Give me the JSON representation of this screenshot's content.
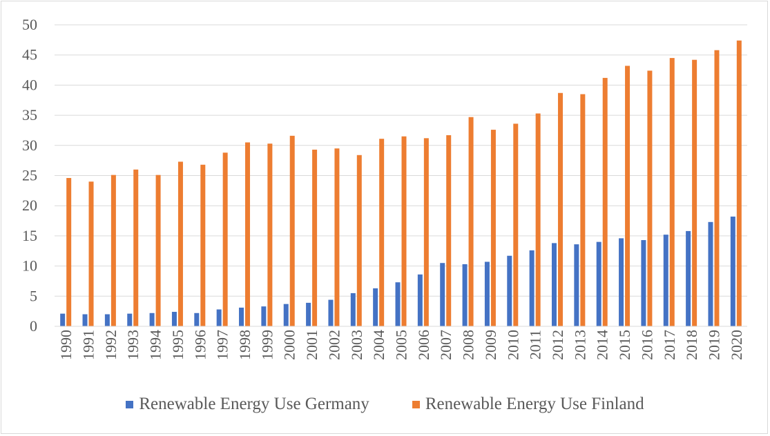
{
  "chart_data": {
    "type": "bar",
    "categories": [
      "1990",
      "1991",
      "1992",
      "1993",
      "1994",
      "1995",
      "1996",
      "1997",
      "1998",
      "1999",
      "2000",
      "2001",
      "2002",
      "2003",
      "2004",
      "2005",
      "2006",
      "2007",
      "2008",
      "2009",
      "2010",
      "2011",
      "2012",
      "2013",
      "2014",
      "2015",
      "2016",
      "2017",
      "2018",
      "2019",
      "2020"
    ],
    "series": [
      {
        "name": "Renewable Energy Use Germany",
        "color": "#4472c4",
        "values": [
          2.1,
          2.0,
          2.0,
          2.1,
          2.2,
          2.4,
          2.2,
          2.8,
          3.1,
          3.3,
          3.7,
          3.9,
          4.4,
          5.5,
          6.3,
          7.3,
          8.6,
          10.5,
          10.3,
          10.7,
          11.7,
          12.6,
          13.8,
          13.6,
          14.0,
          14.6,
          14.3,
          15.2,
          15.8,
          17.3,
          18.2
        ]
      },
      {
        "name": "Renewable Energy Use Finland",
        "color": "#ed7d31",
        "values": [
          24.6,
          24.0,
          25.1,
          26.0,
          25.1,
          27.3,
          26.8,
          28.8,
          30.5,
          30.3,
          31.6,
          29.3,
          29.5,
          28.4,
          31.1,
          31.5,
          31.2,
          31.7,
          34.7,
          32.6,
          33.6,
          35.3,
          38.7,
          38.5,
          41.2,
          43.2,
          42.4,
          44.5,
          44.2,
          45.8,
          47.4
        ]
      }
    ],
    "xlabel": "",
    "ylabel": "",
    "ylim": [
      0,
      50
    ],
    "yticks": [
      0,
      5,
      10,
      15,
      20,
      25,
      30,
      35,
      40,
      45,
      50
    ],
    "grid": true,
    "legend": "bottom"
  }
}
